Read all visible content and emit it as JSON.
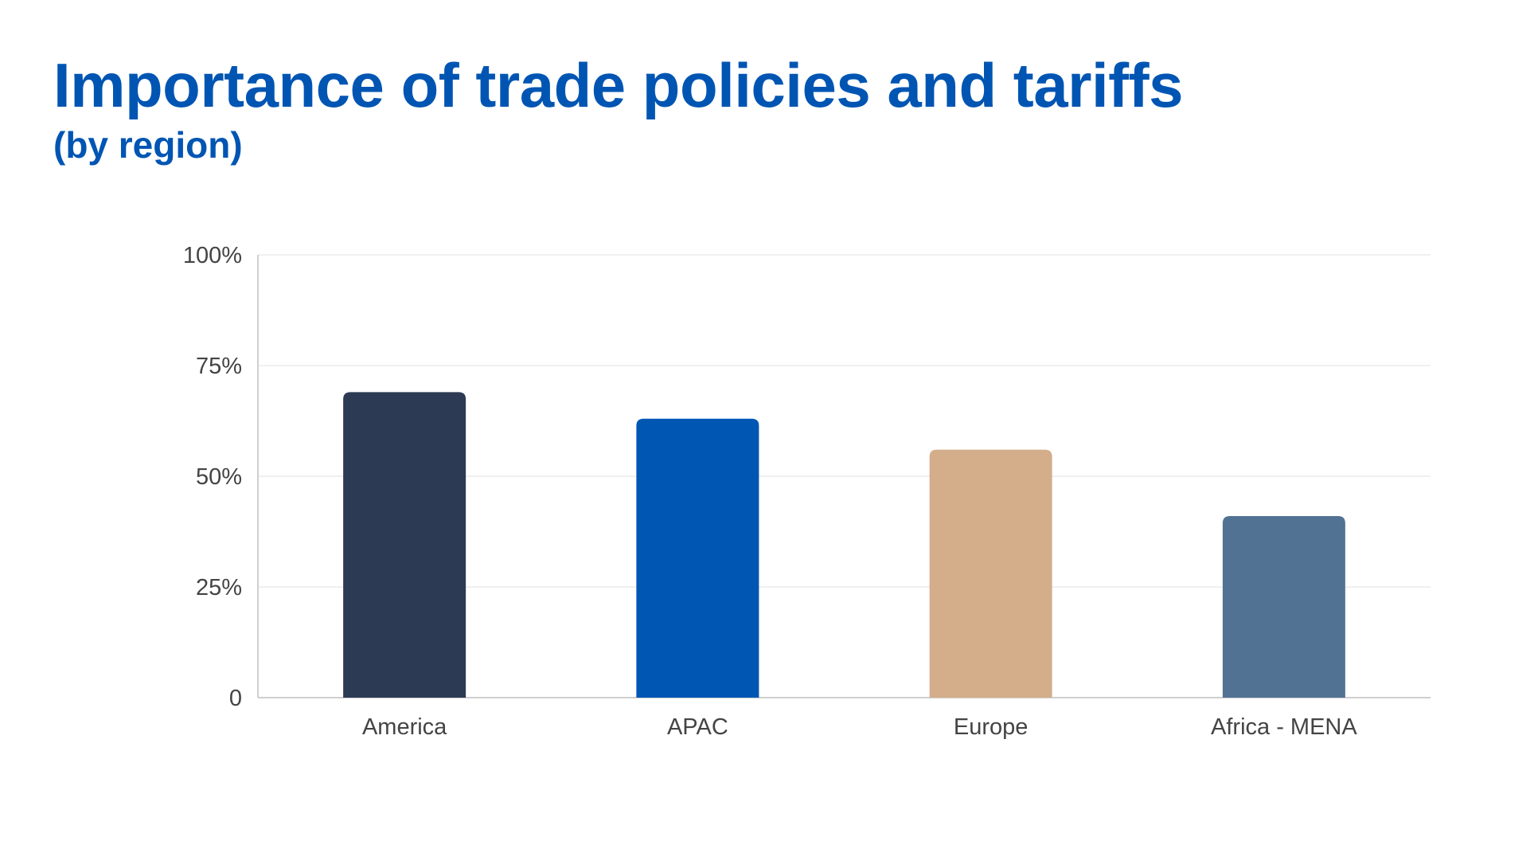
{
  "header": {
    "title": "Importance of trade policies and tariffs",
    "subtitle": "(by region)"
  },
  "chart_data": {
    "type": "bar",
    "title": "Importance of trade policies and tariffs",
    "subtitle": "(by region)",
    "xlabel": "",
    "ylabel": "",
    "categories": [
      "America",
      "APAC",
      "Europe",
      "Africa - MENA"
    ],
    "values": [
      69,
      63,
      56,
      41
    ],
    "unit": "%",
    "ylim": [
      0,
      100
    ],
    "yticks": [
      0,
      25,
      50,
      75,
      100
    ],
    "ytick_labels": [
      "0",
      "25%",
      "50%",
      "75%",
      "100%"
    ],
    "colors": [
      "#2d3a53",
      "#0057b3",
      "#d4ad8a",
      "#527294"
    ],
    "grid": true,
    "legend": "none"
  }
}
